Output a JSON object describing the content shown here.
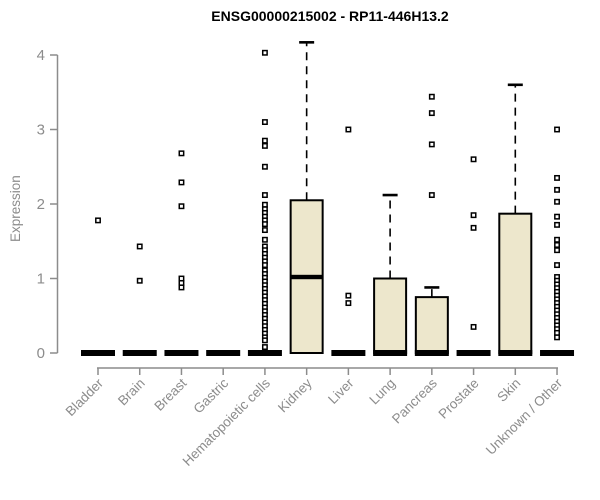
{
  "chart_data": {
    "type": "boxplot",
    "title": "ENSG00000215002 - RP11-446H13.2",
    "ylabel": "Expression",
    "xlabel": "",
    "ylim": [
      0,
      4
    ],
    "yticks": [
      0,
      1,
      2,
      3,
      4
    ],
    "grid": false,
    "legend": false,
    "colors": {
      "box_fill": "#EDE7CC",
      "box_stroke": "#000000",
      "median": "#000000",
      "whisker": "#000000",
      "outlier_stroke": "#000000",
      "axis": "#8C8C8C",
      "tick_text": "#8C8C8C",
      "title_text": "#000000"
    },
    "categories": [
      "Bladder",
      "Brain",
      "Breast",
      "Gastric",
      "Hematopoietic cells",
      "Kidney",
      "Liver",
      "Lung",
      "Pancreas",
      "Prostate",
      "Skin",
      "Unknown / Other"
    ],
    "series": [
      {
        "label": "Bladder",
        "q1": 0,
        "median": 0,
        "q3": 0,
        "whisker_low": 0,
        "whisker_high": 0,
        "outliers": [
          1.78
        ]
      },
      {
        "label": "Brain",
        "q1": 0,
        "median": 0,
        "q3": 0,
        "whisker_low": 0,
        "whisker_high": 0,
        "outliers": [
          1.43,
          0.97
        ]
      },
      {
        "label": "Breast",
        "q1": 0,
        "median": 0,
        "q3": 0,
        "whisker_low": 0,
        "whisker_high": 0,
        "outliers": [
          2.68,
          2.29,
          1.97,
          1.0,
          0.94,
          0.88
        ]
      },
      {
        "label": "Gastric",
        "q1": 0,
        "median": 0,
        "q3": 0,
        "whisker_low": 0,
        "whisker_high": 0,
        "outliers": []
      },
      {
        "label": "Hematopoietic cells",
        "q1": 0,
        "median": 0,
        "q3": 0,
        "whisker_low": 0,
        "whisker_high": 0,
        "outliers": [
          4.03,
          3.1,
          2.85,
          2.78,
          2.5,
          2.12,
          1.99,
          1.93,
          1.88,
          1.83,
          1.78,
          1.73,
          1.65,
          1.52,
          1.43,
          1.38,
          1.33,
          1.28,
          1.23,
          1.18,
          1.11,
          1.06,
          1.01,
          0.96,
          0.91,
          0.86,
          0.81,
          0.76,
          0.71,
          0.66,
          0.61,
          0.56,
          0.51,
          0.46,
          0.41,
          0.36,
          0.31,
          0.26,
          0.21,
          0.17,
          0.08
        ]
      },
      {
        "label": "Kidney",
        "q1": 0,
        "median": 1.02,
        "q3": 2.05,
        "whisker_low": 0,
        "whisker_high": 4.17,
        "outliers": []
      },
      {
        "label": "Liver",
        "q1": 0,
        "median": 0,
        "q3": 0,
        "whisker_low": 0,
        "whisker_high": 0,
        "outliers": [
          3.0,
          0.77,
          0.67
        ]
      },
      {
        "label": "Lung",
        "q1": 0,
        "median": 0,
        "q3": 1.0,
        "whisker_low": 0,
        "whisker_high": 2.12,
        "outliers": []
      },
      {
        "label": "Pancreas",
        "q1": 0,
        "median": 0,
        "q3": 0.75,
        "whisker_low": 0,
        "whisker_high": 0.88,
        "outliers": [
          3.44,
          3.22,
          2.8,
          2.12
        ]
      },
      {
        "label": "Prostate",
        "q1": 0,
        "median": 0,
        "q3": 0,
        "whisker_low": 0,
        "whisker_high": 0,
        "outliers": [
          2.6,
          1.85,
          1.68,
          0.35
        ]
      },
      {
        "label": "Skin",
        "q1": 0,
        "median": 0,
        "q3": 1.87,
        "whisker_low": 0,
        "whisker_high": 3.6,
        "outliers": []
      },
      {
        "label": "Unknown / Other",
        "q1": 0,
        "median": 0,
        "q3": 0,
        "whisker_low": 0,
        "whisker_high": 0,
        "outliers": [
          3.0,
          2.35,
          2.19,
          2.03,
          1.83,
          1.72,
          1.52,
          1.45,
          1.38,
          1.18,
          1.02,
          0.97,
          0.92,
          0.87,
          0.82,
          0.77,
          0.72,
          0.67,
          0.62,
          0.57,
          0.52,
          0.47,
          0.42,
          0.37,
          0.32,
          0.27,
          0.21
        ]
      }
    ]
  }
}
